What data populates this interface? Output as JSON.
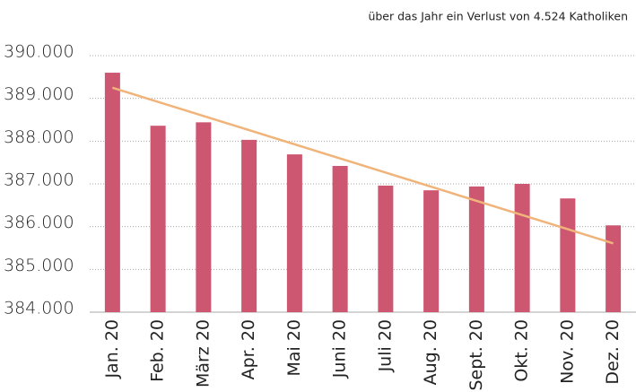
{
  "chart_data": {
    "type": "bar",
    "annotation": "über das Jahr ein Verlust von 4.524 Katholiken",
    "categories": [
      "Jan. 20",
      "Feb. 20",
      "März 20",
      "Apr. 20",
      "Mai 20",
      "Juni 20",
      "Juli 20",
      "Aug. 20",
      "Sept. 20",
      "Okt. 20",
      "Nov. 20",
      "Dez. 20"
    ],
    "values": [
      389600,
      388360,
      388440,
      388030,
      387690,
      387420,
      386960,
      386850,
      386940,
      387000,
      386660,
      386030
    ],
    "color": "#cd5670",
    "trend": {
      "color": "#f0b47a",
      "start": 389250,
      "end": 385610
    },
    "ylim": [
      384000,
      390000
    ],
    "yticks": [
      {
        "value": 384000,
        "label": "384.000"
      },
      {
        "value": 385000,
        "label": "385.000"
      },
      {
        "value": 386000,
        "label": "386.000"
      },
      {
        "value": 387000,
        "label": "387.000"
      },
      {
        "value": 388000,
        "label": "388.000"
      },
      {
        "value": 389000,
        "label": "389.000"
      },
      {
        "value": 390000,
        "label": "390.000"
      }
    ],
    "grid": true
  }
}
